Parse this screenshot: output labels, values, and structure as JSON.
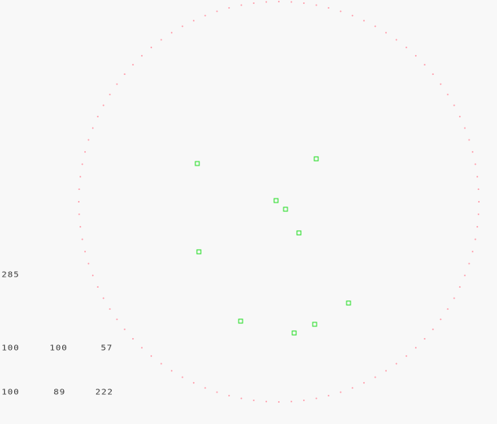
{
  "colors": {
    "background": "#f8f8f8",
    "arena_border": "#ff9aa8",
    "target": "#22dd22",
    "hud_text": "#3a3a3a"
  },
  "arena": {
    "shape": "dotted-circle"
  },
  "targets": [
    {
      "id": "target-1"
    },
    {
      "id": "target-2"
    },
    {
      "id": "target-3"
    },
    {
      "id": "target-4"
    },
    {
      "id": "target-5"
    },
    {
      "id": "target-6"
    },
    {
      "id": "target-7"
    },
    {
      "id": "target-8"
    },
    {
      "id": "target-9"
    },
    {
      "id": "target-10"
    }
  ],
  "hud": {
    "score": "285",
    "row1": [
      "100",
      "100",
      "57"
    ],
    "row2": [
      "100",
      "89",
      "222"
    ]
  }
}
